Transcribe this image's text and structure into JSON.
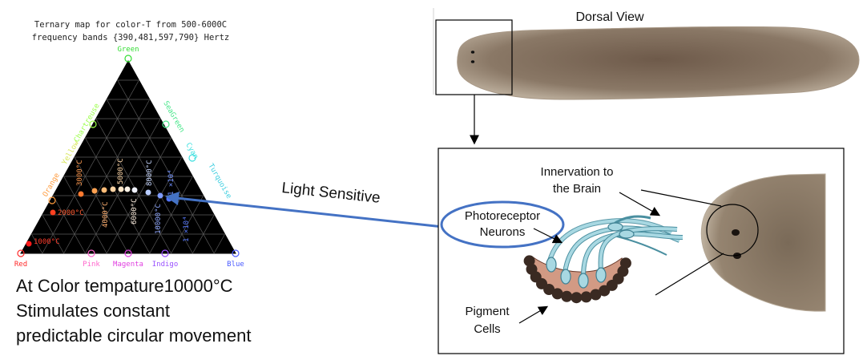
{
  "ternary": {
    "title_line1": "Ternary map for color-T from 500-6000C",
    "title_line2": "frequency bands {390,481,597,790} Hertz",
    "vertices": {
      "top": "Green",
      "left": "Red",
      "right": "Blue"
    },
    "left_edge_labels": [
      "Orange",
      "Yellow",
      "Chartreuse"
    ],
    "right_edge_labels": [
      "SeaGreen",
      "Cyan",
      "Turquoise"
    ],
    "bottom_labels": [
      "Pink",
      "Magenta",
      "Indigo"
    ],
    "temperature_labels": [
      "1000°C",
      "2000°C",
      "3000°C",
      "4000°C",
      "5000°C",
      "6000°C",
      "8000°C",
      "10000°C",
      "1 ×10⁴",
      "1 ×10⁴"
    ],
    "colors": {
      "green": "#33dd33",
      "red": "#ff2a2a",
      "blue": "#4b5bff",
      "orange": "#ff9a3c",
      "yellow": "#d8e65a",
      "chartreuse": "#9cff4a",
      "seagreen": "#48e68a",
      "cyan": "#40e0e0",
      "turquoise": "#40cfe0",
      "pink": "#ff66cc",
      "magenta": "#e040e0",
      "indigo": "#9a50ff"
    }
  },
  "caption": {
    "line1": "At Color tempature10000°C",
    "line2": "Stimulates constant",
    "line3": "predictable circular movement"
  },
  "arrow_label": "Light Sensitive",
  "planarian": {
    "title": "Dorsal View",
    "innervation_line1": "Innervation to",
    "innervation_line2": "the Brain",
    "photoreceptor_line1": "Photoreceptor",
    "photoreceptor_line2": "Neurons",
    "pigment_line1": "Pigment",
    "pigment_line2": "Cells"
  }
}
